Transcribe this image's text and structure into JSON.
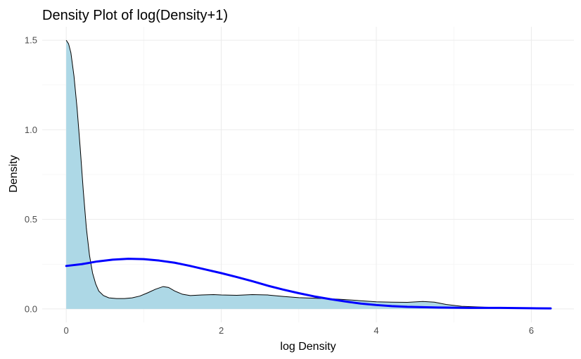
{
  "chart_data": {
    "type": "area",
    "title": "Density Plot of log(Density+1)",
    "xlabel": "log  Density",
    "ylabel": "Density",
    "xlim": [
      -0.31,
      6.55
    ],
    "ylim": [
      -0.075,
      1.575
    ],
    "x_ticks": [
      0,
      2,
      4,
      6
    ],
    "y_ticks": [
      0.0,
      0.5,
      1.0,
      1.5
    ],
    "y_tick_labels": [
      "0.0",
      "0.5",
      "1.0",
      "1.5"
    ],
    "grid": true,
    "series": [
      {
        "kind": "filled-density",
        "fill_color": "#add8e6",
        "line_color": "#000000",
        "points": [
          [
            0.0,
            1.5
          ],
          [
            0.03,
            1.48
          ],
          [
            0.06,
            1.43
          ],
          [
            0.1,
            1.3
          ],
          [
            0.14,
            1.12
          ],
          [
            0.18,
            0.9
          ],
          [
            0.22,
            0.66
          ],
          [
            0.26,
            0.45
          ],
          [
            0.3,
            0.3
          ],
          [
            0.34,
            0.2
          ],
          [
            0.38,
            0.14
          ],
          [
            0.42,
            0.1
          ],
          [
            0.48,
            0.075
          ],
          [
            0.55,
            0.062
          ],
          [
            0.65,
            0.058
          ],
          [
            0.75,
            0.058
          ],
          [
            0.85,
            0.062
          ],
          [
            0.95,
            0.072
          ],
          [
            1.05,
            0.09
          ],
          [
            1.15,
            0.11
          ],
          [
            1.25,
            0.125
          ],
          [
            1.32,
            0.12
          ],
          [
            1.4,
            0.1
          ],
          [
            1.5,
            0.082
          ],
          [
            1.6,
            0.075
          ],
          [
            1.75,
            0.078
          ],
          [
            1.9,
            0.08
          ],
          [
            2.0,
            0.078
          ],
          [
            2.2,
            0.076
          ],
          [
            2.4,
            0.08
          ],
          [
            2.6,
            0.078
          ],
          [
            2.8,
            0.07
          ],
          [
            3.0,
            0.063
          ],
          [
            3.2,
            0.06
          ],
          [
            3.4,
            0.057
          ],
          [
            3.6,
            0.052
          ],
          [
            3.8,
            0.046
          ],
          [
            4.0,
            0.04
          ],
          [
            4.2,
            0.038
          ],
          [
            4.4,
            0.037
          ],
          [
            4.6,
            0.042
          ],
          [
            4.75,
            0.038
          ],
          [
            4.9,
            0.025
          ],
          [
            5.1,
            0.015
          ],
          [
            5.4,
            0.01
          ],
          [
            5.7,
            0.007
          ],
          [
            6.0,
            0.005
          ],
          [
            6.25,
            0.003
          ]
        ]
      },
      {
        "kind": "line",
        "line_color": "#0000ff",
        "points": [
          [
            0.0,
            0.24
          ],
          [
            0.2,
            0.25
          ],
          [
            0.4,
            0.265
          ],
          [
            0.6,
            0.275
          ],
          [
            0.8,
            0.28
          ],
          [
            1.0,
            0.278
          ],
          [
            1.2,
            0.27
          ],
          [
            1.4,
            0.258
          ],
          [
            1.6,
            0.24
          ],
          [
            1.8,
            0.22
          ],
          [
            2.0,
            0.2
          ],
          [
            2.2,
            0.178
          ],
          [
            2.4,
            0.155
          ],
          [
            2.6,
            0.13
          ],
          [
            2.8,
            0.108
          ],
          [
            3.0,
            0.088
          ],
          [
            3.2,
            0.07
          ],
          [
            3.4,
            0.055
          ],
          [
            3.6,
            0.042
          ],
          [
            3.8,
            0.03
          ],
          [
            4.0,
            0.022
          ],
          [
            4.2,
            0.016
          ],
          [
            4.4,
            0.012
          ],
          [
            4.6,
            0.01
          ],
          [
            4.8,
            0.008
          ],
          [
            5.0,
            0.007
          ],
          [
            5.2,
            0.006
          ],
          [
            5.4,
            0.006
          ],
          [
            5.6,
            0.006
          ],
          [
            5.8,
            0.005
          ],
          [
            6.0,
            0.004
          ],
          [
            6.25,
            0.003
          ]
        ]
      }
    ]
  }
}
